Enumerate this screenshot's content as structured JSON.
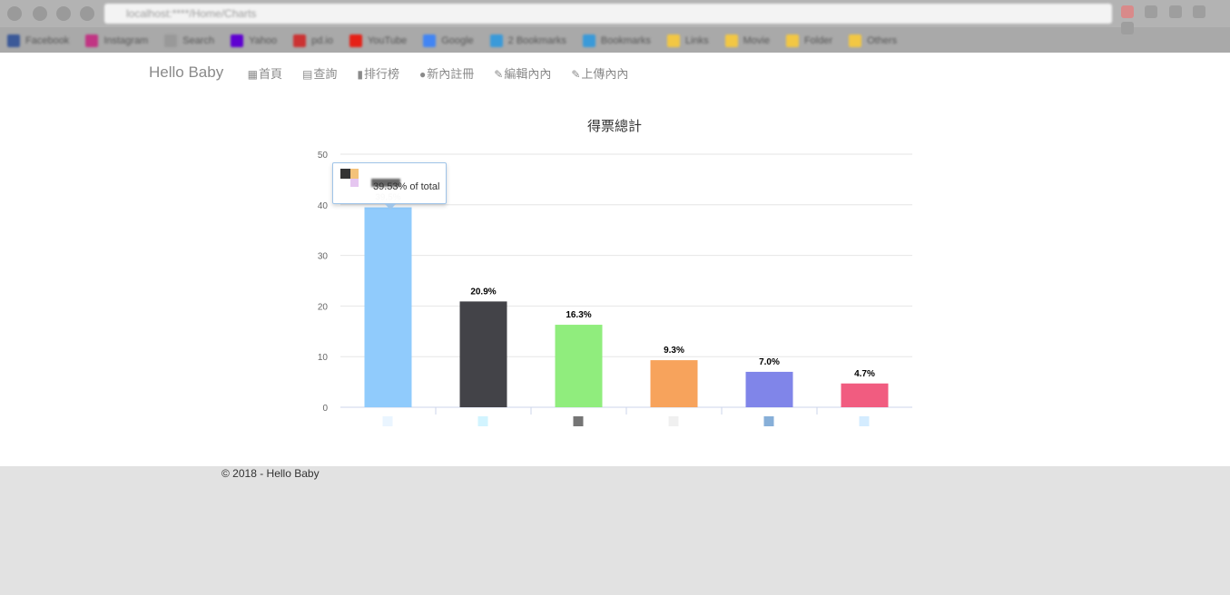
{
  "browser": {
    "url": "localhost:****/Home/Charts",
    "bookmarks": [
      {
        "label": "Facebook",
        "color": "#3b5998"
      },
      {
        "label": "Instagram",
        "color": "#c13584"
      },
      {
        "label": "Search",
        "color": "#999999"
      },
      {
        "label": "Yahoo",
        "color": "#5f01d1"
      },
      {
        "label": "pd.io",
        "color": "#cc3333"
      },
      {
        "label": "YouTube",
        "color": "#e62117"
      },
      {
        "label": "Google",
        "color": "#4285f4"
      },
      {
        "label": "2 Bookmarks",
        "color": "#3a9ad9"
      },
      {
        "label": "Bookmarks",
        "color": "#3a9ad9"
      },
      {
        "label": "Links",
        "color": "#f2c744"
      },
      {
        "label": "Movie",
        "color": "#f2c744"
      },
      {
        "label": "Folder",
        "color": "#f2c744"
      },
      {
        "label": "Others",
        "color": "#f2c744"
      }
    ]
  },
  "nav": {
    "brand": "Hello Baby",
    "items": [
      {
        "icon": "grid-icon",
        "glyph": "▦",
        "label": "首頁"
      },
      {
        "icon": "list-icon",
        "glyph": "▤",
        "label": "查詢"
      },
      {
        "icon": "bar-chart-icon",
        "glyph": "▮",
        "label": "排行榜"
      },
      {
        "icon": "user-icon",
        "glyph": "●",
        "label": "新內註冊"
      },
      {
        "icon": "pencil-icon",
        "glyph": "✎",
        "label": "編輯內內"
      },
      {
        "icon": "pencil-icon",
        "glyph": "✎",
        "label": "上傳內內"
      }
    ]
  },
  "chart_data": {
    "type": "bar",
    "title": "得票總計",
    "categories": [
      "",
      "",
      "",
      "",
      "",
      ""
    ],
    "values": [
      39.5,
      20.9,
      16.3,
      9.3,
      7.0,
      4.7
    ],
    "data_labels": [
      "39.5%",
      "20.9%",
      "16.3%",
      "9.3%",
      "7.0%",
      "4.7%"
    ],
    "colors": [
      "#90cbfc",
      "#434348",
      "#90ed7d",
      "#f7a35c",
      "#8085e9",
      "#f15c80"
    ],
    "ylim": [
      0,
      50
    ],
    "yticks": [
      "0",
      "10",
      "20",
      "30",
      "40",
      "50"
    ],
    "grid": true
  },
  "tooltip": {
    "text": "39.53% of total"
  },
  "footer": {
    "text": "© 2018 - Hello Baby"
  }
}
